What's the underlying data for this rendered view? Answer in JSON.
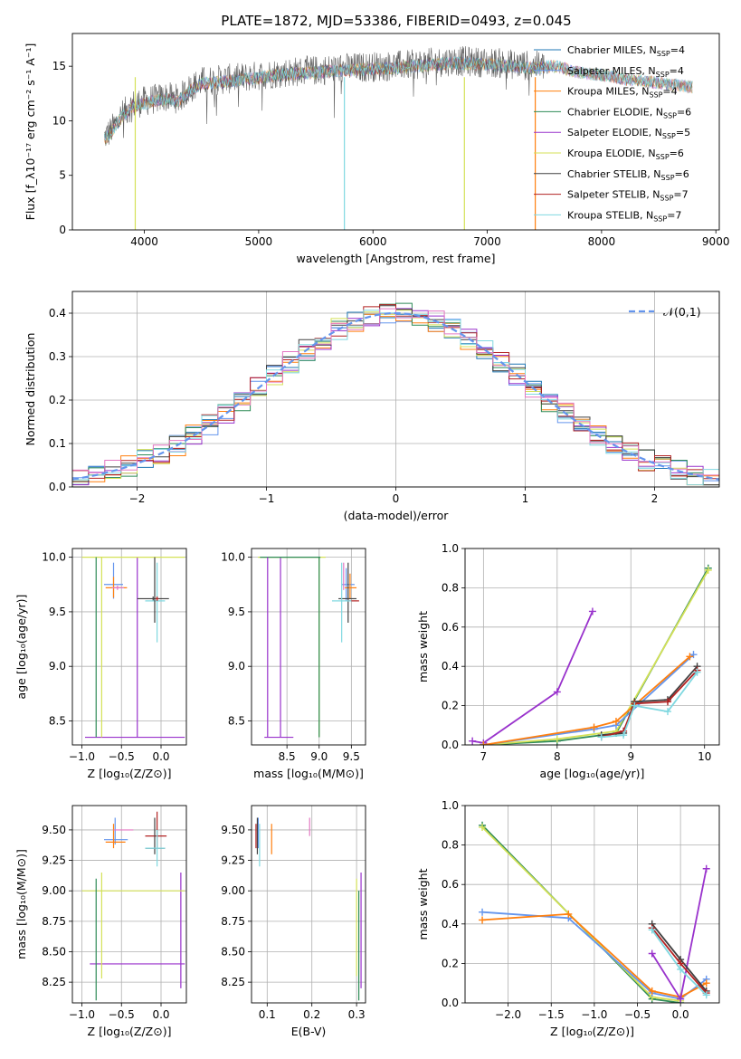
{
  "figure_title": "PLATE=1872, MJD=53386, FIBERID=0493, z=0.045",
  "colors": {
    "Chabrier MILES": "#1f77b4",
    "Salpeter MILES": "#6495ed",
    "Kroupa MILES": "#ff7f0e",
    "Chabrier ELODIE": "#2e8b57",
    "Salpeter ELODIE": "#9932cc",
    "Kroupa ELODIE": "#d4e157",
    "Chabrier STELIB": "#404040",
    "Salpeter STELIB": "#b22222",
    "Kroupa STELIB": "#80d8e0",
    "pink": "#e377c2",
    "normal_curve": "#6495ed"
  },
  "chart_data": [
    {
      "id": "spectrum",
      "type": "line",
      "xlabel": "wavelength [Angstrom, rest frame]",
      "ylabel": "Flux [f_λ10⁻¹⁷ erg cm⁻² s⁻¹ A⁻¹]",
      "xlim": [
        3370,
        9030
      ],
      "ylim": [
        0,
        18
      ],
      "xticks": [
        4000,
        5000,
        6000,
        7000,
        8000,
        9000
      ],
      "yticks": [
        0,
        5,
        10,
        15
      ],
      "grid": false,
      "legend_position": "top-right",
      "legend": [
        {
          "name": "Chabrier MILES",
          "sub": "4"
        },
        {
          "name": "Salpeter MILES",
          "sub": "4"
        },
        {
          "name": "Kroupa MILES",
          "sub": "4"
        },
        {
          "name": "Chabrier ELODIE",
          "sub": "6"
        },
        {
          "name": "Salpeter ELODIE",
          "sub": "5"
        },
        {
          "name": "Kroupa ELODIE",
          "sub": "6"
        },
        {
          "name": "Chabrier STELIB",
          "sub": "6"
        },
        {
          "name": "Salpeter STELIB",
          "sub": "7"
        },
        {
          "name": "Kroupa STELIB",
          "sub": "7"
        }
      ],
      "observed_envelope": [
        [
          3650,
          8.5
        ],
        [
          3700,
          9.0
        ],
        [
          3800,
          10.5
        ],
        [
          3900,
          11.5
        ],
        [
          4000,
          11.8
        ],
        [
          4100,
          12.0
        ],
        [
          4200,
          12.2
        ],
        [
          4300,
          12.0
        ],
        [
          4400,
          13.0
        ],
        [
          4500,
          13.6
        ],
        [
          4700,
          13.8
        ],
        [
          4900,
          14.0
        ],
        [
          5100,
          14.3
        ],
        [
          5300,
          14.5
        ],
        [
          5500,
          14.6
        ],
        [
          5700,
          14.8
        ],
        [
          5900,
          14.9
        ],
        [
          6100,
          15.0
        ],
        [
          6300,
          15.1
        ],
        [
          6500,
          15.3
        ],
        [
          6700,
          15.5
        ],
        [
          6900,
          15.4
        ],
        [
          7100,
          15.3
        ],
        [
          7300,
          15.1
        ],
        [
          7500,
          15.0
        ]
      ],
      "model_envelope": [
        [
          7400,
          15.0
        ],
        [
          7600,
          15.2
        ],
        [
          7800,
          14.6
        ],
        [
          8000,
          14.4
        ],
        [
          8200,
          14.0
        ],
        [
          8400,
          13.8
        ],
        [
          8600,
          13.5
        ],
        [
          8800,
          13.3
        ]
      ],
      "drops": [
        [
          3920,
          "#d4e157"
        ],
        [
          5750,
          "#80d8e0"
        ],
        [
          6800,
          "#d4e157"
        ],
        [
          7420,
          "#ff7f0e"
        ]
      ]
    },
    {
      "id": "residuals",
      "type": "line",
      "xlabel": "(data-model)/error",
      "ylabel": "Normed distribution",
      "xlim": [
        -2.5,
        2.5
      ],
      "ylim": [
        0,
        0.45
      ],
      "xticks": [
        -2,
        -1,
        0,
        1,
        2
      ],
      "yticks": [
        0.0,
        0.1,
        0.2,
        0.3,
        0.4
      ],
      "grid": true,
      "legend_position": "top-right",
      "legend": "𝒩(0,1)"
    },
    {
      "id": "age_vs_Z",
      "type": "scatter",
      "xlabel": "Z [log₁₀(Z/Z⊙)]",
      "ylabel": "age  [log₁₀(age/yr)]",
      "xlim": [
        -1.12,
        0.32
      ],
      "ylim": [
        8.28,
        10.08
      ],
      "xticks": [
        -1.0,
        -0.5,
        0.0
      ],
      "yticks": [
        8.5,
        9.0,
        9.5,
        10.0
      ],
      "grid": true,
      "errorbars": [
        {
          "c": "Salpeter ELODIE",
          "x": -0.3,
          "y": 8.35,
          "xe": [
            -0.96,
            0.3
          ],
          "ye": [
            8.35,
            10.0
          ]
        },
        {
          "c": "Kroupa ELODIE",
          "x": -0.3,
          "y": 10.0,
          "xe": [
            -1.0,
            0.3
          ],
          "ye": [
            10.0,
            10.0
          ]
        },
        {
          "c": "Kroupa ELODIE",
          "x": -0.75,
          "y": 10.0,
          "xe": [
            -0.75,
            -0.75
          ],
          "ye": [
            8.35,
            10.0
          ]
        },
        {
          "c": "Chabrier ELODIE",
          "x": -0.82,
          "y": 10.0,
          "xe": [
            -0.82,
            -0.82
          ],
          "ye": [
            8.35,
            10.0
          ]
        },
        {
          "c": "Salpeter MILES",
          "x": -0.6,
          "y": 9.75,
          "xe": [
            -0.72,
            -0.48
          ],
          "ye": [
            9.62,
            9.95
          ]
        },
        {
          "c": "Kroupa MILES",
          "x": -0.6,
          "y": 9.72,
          "xe": [
            -0.7,
            -0.43
          ],
          "ye": [
            9.63,
            9.82
          ]
        },
        {
          "c": "pink",
          "x": -0.55,
          "y": 9.72,
          "xe": [
            -0.62,
            -0.47
          ],
          "ye": [
            9.7,
            9.74
          ]
        },
        {
          "c": "Chabrier STELIB",
          "x": -0.1,
          "y": 9.62,
          "xe": [
            -0.3,
            0.1
          ],
          "ye": [
            9.6,
            9.64
          ]
        },
        {
          "c": "Kroupa STELIB",
          "x": -0.05,
          "y": 9.6,
          "xe": [
            -0.2,
            0.05
          ],
          "ye": [
            9.22,
            9.95
          ]
        },
        {
          "c": "Salpeter STELIB",
          "x": -0.05,
          "y": 9.62,
          "xe": [
            -0.07,
            -0.03
          ],
          "ye": [
            9.6,
            9.64
          ]
        },
        {
          "c": "Chabrier STELIB",
          "x": -0.08,
          "y": 9.62,
          "xe": [
            -0.08,
            -0.08
          ],
          "ye": [
            9.4,
            10.0
          ]
        }
      ]
    },
    {
      "id": "age_vs_mass",
      "type": "scatter",
      "xlabel": "mass [log₁₀(M/M⊙)]",
      "ylabel": "",
      "xlim": [
        7.95,
        9.72
      ],
      "ylim": [
        8.28,
        10.08
      ],
      "xticks": [
        8.5,
        9.0,
        9.5
      ],
      "yticks": [
        8.5,
        9.0,
        9.5,
        10.0
      ],
      "grid": true,
      "errorbars": [
        {
          "c": "Salpeter ELODIE",
          "x": 8.4,
          "y": 8.35,
          "xe": [
            8.15,
            8.6
          ],
          "ye": [
            8.35,
            10.0
          ]
        },
        {
          "c": "Kroupa ELODIE",
          "x": 9.0,
          "y": 10.0,
          "xe": [
            8.05,
            9.1
          ],
          "ye": [
            8.35,
            10.0
          ]
        },
        {
          "c": "Chabrier ELODIE",
          "x": 9.0,
          "y": 10.0,
          "xe": [
            8.08,
            9.02
          ],
          "ye": [
            8.35,
            10.0
          ]
        },
        {
          "c": "Salpeter ELODIE",
          "x": 8.2,
          "y": 10.0,
          "xe": [
            8.2,
            8.2
          ],
          "ye": [
            8.35,
            10.0
          ]
        },
        {
          "c": "Salpeter MILES",
          "x": 9.42,
          "y": 9.75,
          "xe": [
            9.35,
            9.55
          ],
          "ye": [
            9.6,
            9.9
          ]
        },
        {
          "c": "Kroupa MILES",
          "x": 9.48,
          "y": 9.72,
          "xe": [
            9.4,
            9.58
          ],
          "ye": [
            9.62,
            9.85
          ]
        },
        {
          "c": "pink",
          "x": 9.38,
          "y": 9.8,
          "xe": [
            9.38,
            9.38
          ],
          "ye": [
            9.7,
            9.95
          ]
        },
        {
          "c": "Chabrier STELIB",
          "x": 9.45,
          "y": 9.62,
          "xe": [
            9.3,
            9.58
          ],
          "ye": [
            9.4,
            9.95
          ]
        },
        {
          "c": "Salpeter STELIB",
          "x": 9.5,
          "y": 9.6,
          "xe": [
            9.45,
            9.62
          ],
          "ye": [
            9.6,
            9.6
          ]
        },
        {
          "c": "Kroupa STELIB",
          "x": 9.35,
          "y": 9.6,
          "xe": [
            9.2,
            9.5
          ],
          "ye": [
            9.22,
            9.95
          ]
        }
      ]
    },
    {
      "id": "massweight_vs_age",
      "type": "line",
      "xlabel": "age  [log₁₀(age/yr)]",
      "ylabel": "mass weight",
      "xlim": [
        6.75,
        10.2
      ],
      "ylim": [
        0,
        1.0
      ],
      "xticks": [
        7,
        8,
        9,
        10
      ],
      "yticks": [
        0.0,
        0.2,
        0.4,
        0.6,
        0.8,
        1.0
      ],
      "grid": true,
      "series": [
        {
          "c": "Salpeter ELODIE",
          "x": [
            6.85,
            7.0,
            8.0,
            8.48
          ],
          "y": [
            0.02,
            0.01,
            0.27,
            0.68
          ]
        },
        {
          "c": "Chabrier ELODIE",
          "x": [
            7.0,
            8.0,
            8.8,
            10.05
          ],
          "y": [
            0.0,
            0.02,
            0.06,
            0.9
          ]
        },
        {
          "c": "Kroupa ELODIE",
          "x": [
            7.0,
            8.0,
            8.8,
            10.05
          ],
          "y": [
            0.0,
            0.03,
            0.07,
            0.89
          ]
        },
        {
          "c": "Salpeter MILES",
          "x": [
            7.0,
            8.5,
            8.8,
            9.85
          ],
          "y": [
            0.0,
            0.08,
            0.1,
            0.46
          ]
        },
        {
          "c": "Kroupa MILES",
          "x": [
            7.0,
            8.5,
            8.8,
            9.8
          ],
          "y": [
            0.0,
            0.09,
            0.12,
            0.45
          ]
        },
        {
          "c": "Chabrier STELIB",
          "x": [
            8.6,
            8.9,
            9.05,
            9.5,
            9.9
          ],
          "y": [
            0.05,
            0.06,
            0.22,
            0.23,
            0.4
          ]
        },
        {
          "c": "Salpeter STELIB",
          "x": [
            8.6,
            8.9,
            9.05,
            9.5,
            9.9
          ],
          "y": [
            0.04,
            0.07,
            0.21,
            0.22,
            0.38
          ]
        },
        {
          "c": "Kroupa STELIB",
          "x": [
            8.6,
            8.9,
            9.05,
            9.5,
            9.9
          ],
          "y": [
            0.04,
            0.05,
            0.2,
            0.17,
            0.37
          ]
        }
      ]
    },
    {
      "id": "mass_vs_Z",
      "type": "scatter",
      "xlabel": "Z [log₁₀(Z/Z⊙)]",
      "ylabel": "mass [log₁₀(M/M⊙)]",
      "xlim": [
        -1.12,
        0.32
      ],
      "ylim": [
        8.08,
        9.7
      ],
      "xticks": [
        -1.0,
        -0.5,
        0.0
      ],
      "yticks": [
        8.25,
        8.5,
        8.75,
        9.0,
        9.25,
        9.5
      ],
      "grid": true,
      "errorbars": [
        {
          "c": "Salpeter ELODIE",
          "x": 0.25,
          "y": 8.4,
          "xe": [
            -0.9,
            0.3
          ],
          "ye": [
            8.2,
            9.15
          ]
        },
        {
          "c": "Kroupa ELODIE",
          "x": -0.3,
          "y": 9.0,
          "xe": [
            -1.0,
            0.3
          ],
          "ye": [
            9.0,
            9.0
          ]
        },
        {
          "c": "Kroupa ELODIE",
          "x": -0.75,
          "y": 9.0,
          "xe": [
            -0.75,
            -0.75
          ],
          "ye": [
            8.28,
            9.15
          ]
        },
        {
          "c": "Chabrier ELODIE",
          "x": -0.82,
          "y": 9.0,
          "xe": [
            -0.82,
            -0.82
          ],
          "ye": [
            8.1,
            9.1
          ]
        },
        {
          "c": "Salpeter MILES",
          "x": -0.58,
          "y": 9.42,
          "xe": [
            -0.72,
            -0.42
          ],
          "ye": [
            9.38,
            9.6
          ]
        },
        {
          "c": "Kroupa MILES",
          "x": -0.6,
          "y": 9.4,
          "xe": [
            -0.7,
            -0.45
          ],
          "ye": [
            9.35,
            9.55
          ]
        },
        {
          "c": "pink",
          "x": -0.5,
          "y": 9.5,
          "xe": [
            -0.6,
            -0.35
          ],
          "ye": [
            9.5,
            9.5
          ]
        },
        {
          "c": "Salpeter STELIB",
          "x": -0.05,
          "y": 9.45,
          "xe": [
            -0.2,
            0.07
          ],
          "ye": [
            9.35,
            9.65
          ]
        },
        {
          "c": "Chabrier STELIB",
          "x": -0.08,
          "y": 9.35,
          "xe": [
            -0.2,
            0.05
          ],
          "ye": [
            9.3,
            9.6
          ]
        },
        {
          "c": "Kroupa STELIB",
          "x": -0.05,
          "y": 9.35,
          "xe": [
            -0.2,
            0.05
          ],
          "ye": [
            9.2,
            9.5
          ]
        }
      ]
    },
    {
      "id": "mass_vs_ebv",
      "type": "scatter",
      "xlabel": "E(B-V)",
      "ylabel": "",
      "xlim": [
        0.065,
        0.32
      ],
      "ylim": [
        8.08,
        9.7
      ],
      "xticks": [
        0.1,
        0.2,
        0.3
      ],
      "yticks": [
        8.25,
        8.5,
        8.75,
        9.0,
        9.25,
        9.5
      ],
      "grid": true,
      "errorbars": [
        {
          "c": "Salpeter MILES",
          "x": 0.08,
          "y": 9.5,
          "xe": [
            0.08,
            0.08
          ],
          "ye": [
            9.35,
            9.6
          ]
        },
        {
          "c": "Chabrier STELIB",
          "x": 0.078,
          "y": 9.45,
          "xe": [
            0.078,
            0.078
          ],
          "ye": [
            9.3,
            9.6
          ]
        },
        {
          "c": "Kroupa STELIB",
          "x": 0.083,
          "y": 9.4,
          "xe": [
            0.083,
            0.083
          ],
          "ye": [
            9.2,
            9.55
          ]
        },
        {
          "c": "Kroupa MILES",
          "x": 0.11,
          "y": 9.4,
          "xe": [
            0.11,
            0.11
          ],
          "ye": [
            9.3,
            9.55
          ]
        },
        {
          "c": "Salpeter STELIB",
          "x": 0.075,
          "y": 9.45,
          "xe": [
            0.075,
            0.075
          ],
          "ye": [
            9.35,
            9.55
          ]
        },
        {
          "c": "pink",
          "x": 0.195,
          "y": 9.5,
          "xe": [
            0.195,
            0.195
          ],
          "ye": [
            9.45,
            9.6
          ]
        },
        {
          "c": "Salpeter ELODIE",
          "x": 0.31,
          "y": 8.5,
          "xe": [
            0.31,
            0.31
          ],
          "ye": [
            8.2,
            9.15
          ]
        },
        {
          "c": "Kroupa ELODIE",
          "x": 0.3,
          "y": 9.0,
          "xe": [
            0.3,
            0.3
          ],
          "ye": [
            8.3,
            9.1
          ]
        },
        {
          "c": "Chabrier ELODIE",
          "x": 0.305,
          "y": 8.6,
          "xe": [
            0.305,
            0.305
          ],
          "ye": [
            8.1,
            9.0
          ]
        }
      ]
    },
    {
      "id": "massweight_vs_Z",
      "type": "line",
      "xlabel": "Z [log₁₀(Z/Z⊙)]",
      "ylabel": "mass weight",
      "xlim": [
        -2.5,
        0.45
      ],
      "ylim": [
        0,
        1.0
      ],
      "xticks": [
        -2.0,
        -1.5,
        -1.0,
        -0.5,
        0.0
      ],
      "yticks": [
        0.0,
        0.2,
        0.4,
        0.6,
        0.8,
        1.0
      ],
      "grid": true,
      "series": [
        {
          "c": "Chabrier ELODIE",
          "x": [
            -2.3,
            -0.33,
            0.0
          ],
          "y": [
            0.9,
            0.02,
            0.0
          ]
        },
        {
          "c": "Kroupa ELODIE",
          "x": [
            -2.3,
            -0.33,
            0.0
          ],
          "y": [
            0.89,
            0.03,
            0.01
          ]
        },
        {
          "c": "Salpeter MILES",
          "x": [
            -2.3,
            -1.3,
            -0.33,
            0.0,
            0.3
          ],
          "y": [
            0.46,
            0.43,
            0.05,
            0.02,
            0.12
          ]
        },
        {
          "c": "Kroupa MILES",
          "x": [
            -2.3,
            -1.3,
            -0.33,
            0.0,
            0.3
          ],
          "y": [
            0.42,
            0.45,
            0.06,
            0.03,
            0.1
          ]
        },
        {
          "c": "Salpeter ELODIE",
          "x": [
            -0.33,
            0.0,
            0.3
          ],
          "y": [
            0.25,
            0.02,
            0.68
          ]
        },
        {
          "c": "Chabrier STELIB",
          "x": [
            -0.33,
            0.0,
            0.3
          ],
          "y": [
            0.4,
            0.22,
            0.06
          ]
        },
        {
          "c": "Salpeter STELIB",
          "x": [
            -0.33,
            0.0,
            0.3
          ],
          "y": [
            0.38,
            0.2,
            0.05
          ]
        },
        {
          "c": "Kroupa STELIB",
          "x": [
            -0.33,
            0.0,
            0.3
          ],
          "y": [
            0.37,
            0.17,
            0.04
          ]
        }
      ]
    }
  ]
}
